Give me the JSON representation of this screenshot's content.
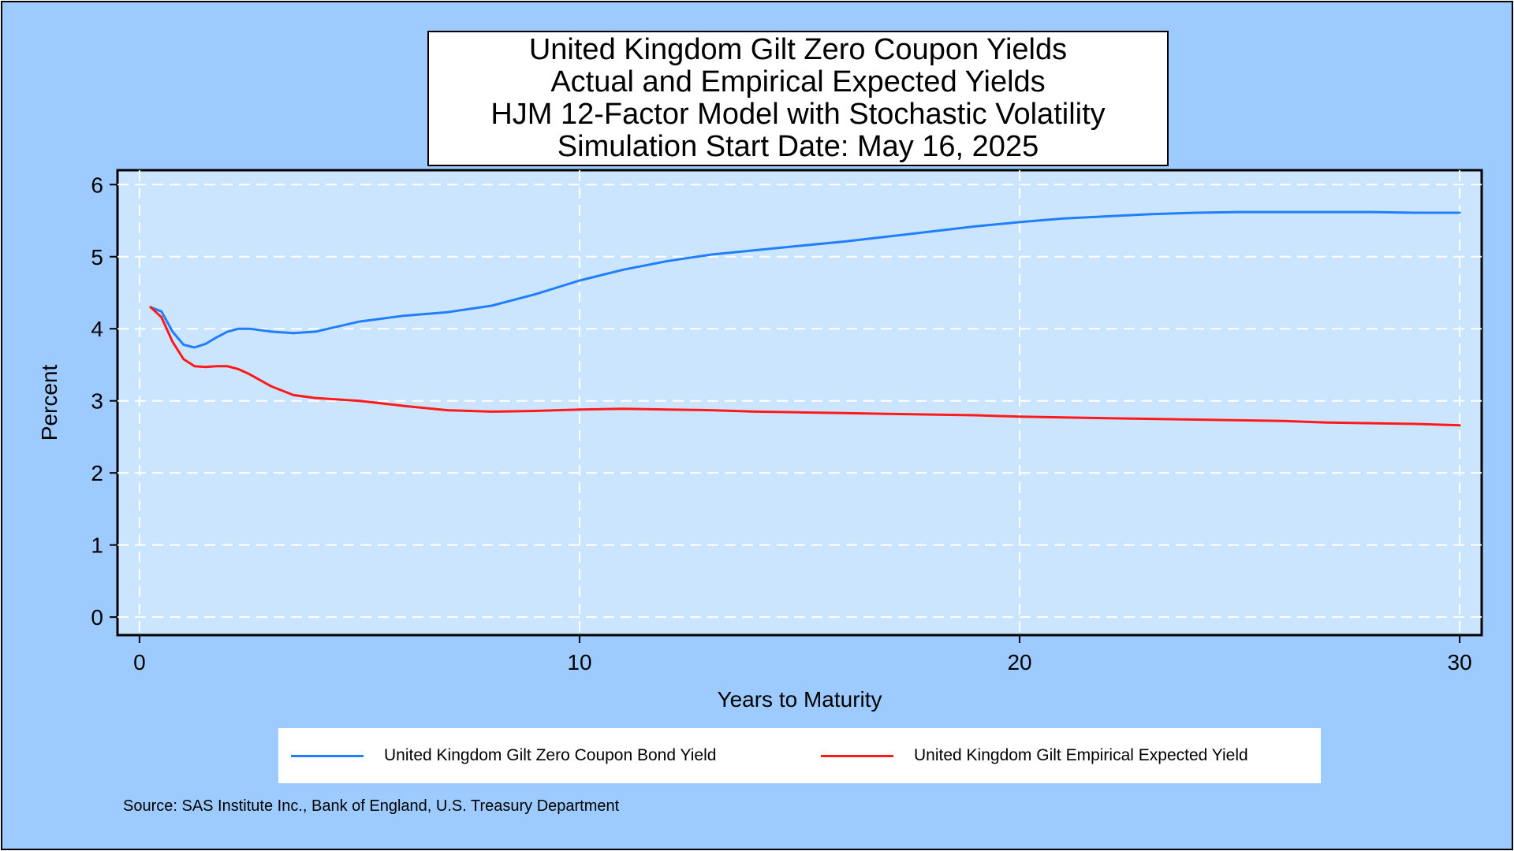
{
  "chart_data": {
    "type": "line",
    "title": [
      "United Kingdom Gilt Zero Coupon Yields",
      "Actual and Empirical Expected Yields",
      "HJM 12-Factor Model with Stochastic Volatility",
      "Simulation Start Date: May 16, 2025"
    ],
    "xlabel": "Years to Maturity",
    "ylabel": "Percent",
    "xlim": [
      -0.5,
      30.5
    ],
    "ylim": [
      -0.25,
      6.2
    ],
    "xticks": [
      0,
      10,
      20,
      30
    ],
    "yticks": [
      0,
      1,
      2,
      3,
      4,
      5,
      6
    ],
    "grid": true,
    "legend_position": "bottom",
    "series": [
      {
        "name": "United Kingdom Gilt Zero Coupon Bond Yield",
        "color": "#1f7fff",
        "x": [
          0.25,
          0.5,
          0.75,
          1,
          1.25,
          1.5,
          1.75,
          2,
          2.25,
          2.5,
          3,
          3.5,
          4,
          5,
          6,
          7,
          8,
          9,
          10,
          11,
          12,
          13,
          14,
          15,
          16,
          17,
          18,
          19,
          20,
          21,
          22,
          23,
          24,
          25,
          26,
          27,
          28,
          29,
          30
        ],
        "y": [
          4.3,
          4.24,
          3.96,
          3.78,
          3.74,
          3.79,
          3.88,
          3.96,
          4.0,
          4.0,
          3.96,
          3.94,
          3.96,
          4.1,
          4.18,
          4.23,
          4.32,
          4.48,
          4.67,
          4.82,
          4.94,
          5.03,
          5.09,
          5.15,
          5.21,
          5.28,
          5.35,
          5.42,
          5.48,
          5.53,
          5.56,
          5.59,
          5.61,
          5.62,
          5.62,
          5.62,
          5.62,
          5.61,
          5.61
        ]
      },
      {
        "name": "United Kingdom Gilt Empirical Expected Yield",
        "color": "#ff1a1a",
        "x": [
          0.25,
          0.5,
          0.75,
          1,
          1.25,
          1.5,
          1.75,
          2,
          2.25,
          2.5,
          3,
          3.5,
          4,
          5,
          6,
          7,
          8,
          9,
          10,
          11,
          12,
          13,
          14,
          15,
          16,
          17,
          18,
          19,
          20,
          21,
          22,
          23,
          24,
          25,
          26,
          27,
          28,
          29,
          30
        ],
        "y": [
          4.3,
          4.16,
          3.82,
          3.58,
          3.48,
          3.47,
          3.48,
          3.48,
          3.44,
          3.37,
          3.2,
          3.08,
          3.04,
          3.0,
          2.93,
          2.87,
          2.85,
          2.86,
          2.88,
          2.89,
          2.88,
          2.87,
          2.85,
          2.84,
          2.83,
          2.82,
          2.81,
          2.8,
          2.78,
          2.77,
          2.76,
          2.75,
          2.74,
          2.73,
          2.72,
          2.7,
          2.69,
          2.68,
          2.66
        ]
      }
    ]
  },
  "source": "Source: SAS Institute Inc., Bank of England, U.S. Treasury Department"
}
